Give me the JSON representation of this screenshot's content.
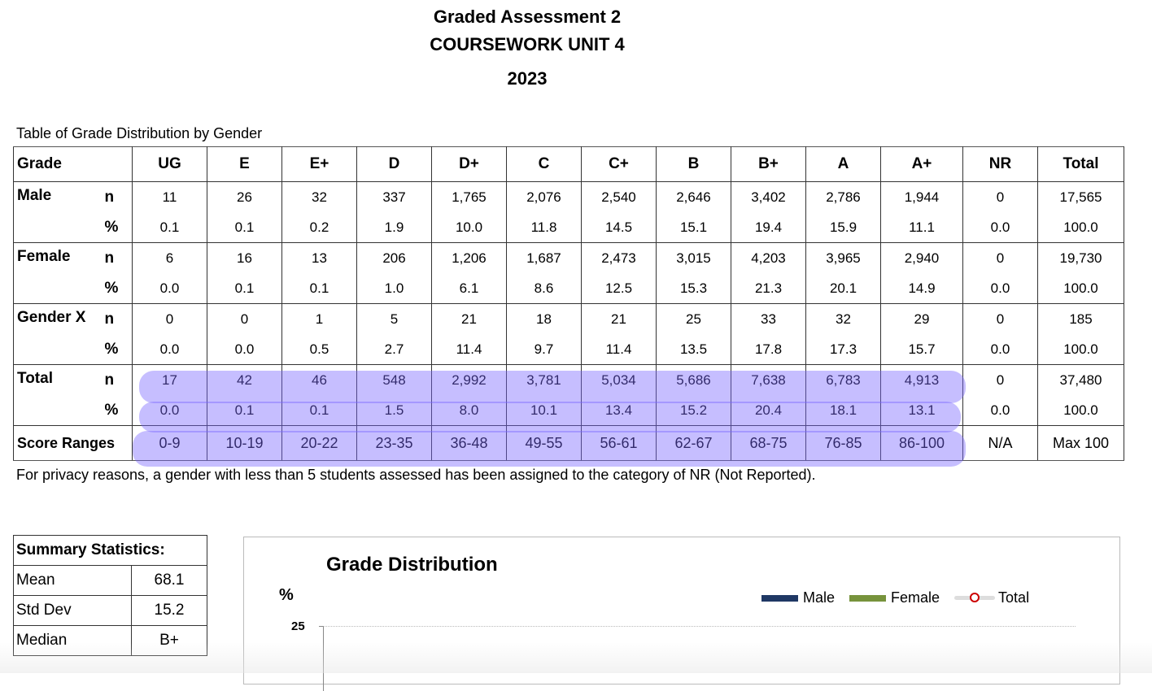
{
  "header": {
    "title": "Graded Assessment 2",
    "subtitle": "COURSEWORK UNIT 4",
    "year": "2023"
  },
  "table": {
    "caption": "Table of Grade Distribution by Gender",
    "corner_label": "Grade",
    "columns": [
      "UG",
      "E",
      "E+",
      "D",
      "D+",
      "C",
      "C+",
      "B",
      "B+",
      "A",
      "A+",
      "NR",
      "Total"
    ],
    "n_label": "n",
    "pct_label": "%",
    "groups": [
      {
        "label": "Male",
        "n": [
          "11",
          "26",
          "32",
          "337",
          "1,765",
          "2,076",
          "2,540",
          "2,646",
          "3,402",
          "2,786",
          "1,944",
          "0",
          "17,565"
        ],
        "pct": [
          "0.1",
          "0.1",
          "0.2",
          "1.9",
          "10.0",
          "11.8",
          "14.5",
          "15.1",
          "19.4",
          "15.9",
          "11.1",
          "0.0",
          "100.0"
        ]
      },
      {
        "label": "Female",
        "n": [
          "6",
          "16",
          "13",
          "206",
          "1,206",
          "1,687",
          "2,473",
          "3,015",
          "4,203",
          "3,965",
          "2,940",
          "0",
          "19,730"
        ],
        "pct": [
          "0.0",
          "0.1",
          "0.1",
          "1.0",
          "6.1",
          "8.6",
          "12.5",
          "15.3",
          "21.3",
          "20.1",
          "14.9",
          "0.0",
          "100.0"
        ]
      },
      {
        "label": "Gender X",
        "n": [
          "0",
          "0",
          "1",
          "5",
          "21",
          "18",
          "21",
          "25",
          "33",
          "32",
          "29",
          "0",
          "185"
        ],
        "pct": [
          "0.0",
          "0.0",
          "0.5",
          "2.7",
          "11.4",
          "9.7",
          "11.4",
          "13.5",
          "17.8",
          "17.3",
          "15.7",
          "0.0",
          "100.0"
        ]
      },
      {
        "label": "Total",
        "n": [
          "17",
          "42",
          "46",
          "548",
          "2,992",
          "3,781",
          "5,034",
          "5,686",
          "7,638",
          "6,783",
          "4,913",
          "0",
          "37,480"
        ],
        "pct": [
          "0.0",
          "0.1",
          "0.1",
          "1.5",
          "8.0",
          "10.1",
          "13.4",
          "15.2",
          "20.4",
          "18.1",
          "13.1",
          "0.0",
          "100.0"
        ]
      }
    ],
    "score_ranges": {
      "label": "Score Ranges",
      "values": [
        "0-9",
        "10-19",
        "20-22",
        "23-35",
        "36-48",
        "49-55",
        "56-61",
        "62-67",
        "68-75",
        "76-85",
        "86-100",
        "N/A",
        "Max 100"
      ]
    },
    "note": "For  privacy reasons, a gender with less than 5 students assessed has been assigned to the category of NR (Not Reported)."
  },
  "summary": {
    "title": "Summary Statistics:",
    "rows": [
      {
        "label": "Mean",
        "value": "68.1"
      },
      {
        "label": "Std Dev",
        "value": "15.2"
      },
      {
        "label": "Median",
        "value": "B+"
      }
    ]
  },
  "chart": {
    "title": "Grade Distribution",
    "ylabel": "%",
    "ytick_top": "25",
    "legend": [
      {
        "label": "Male",
        "color": "#1f3864"
      },
      {
        "label": "Female",
        "color": "#77933c"
      },
      {
        "label": "Total",
        "color": "#c00000"
      }
    ]
  },
  "highlight_color": "#7864ff"
}
